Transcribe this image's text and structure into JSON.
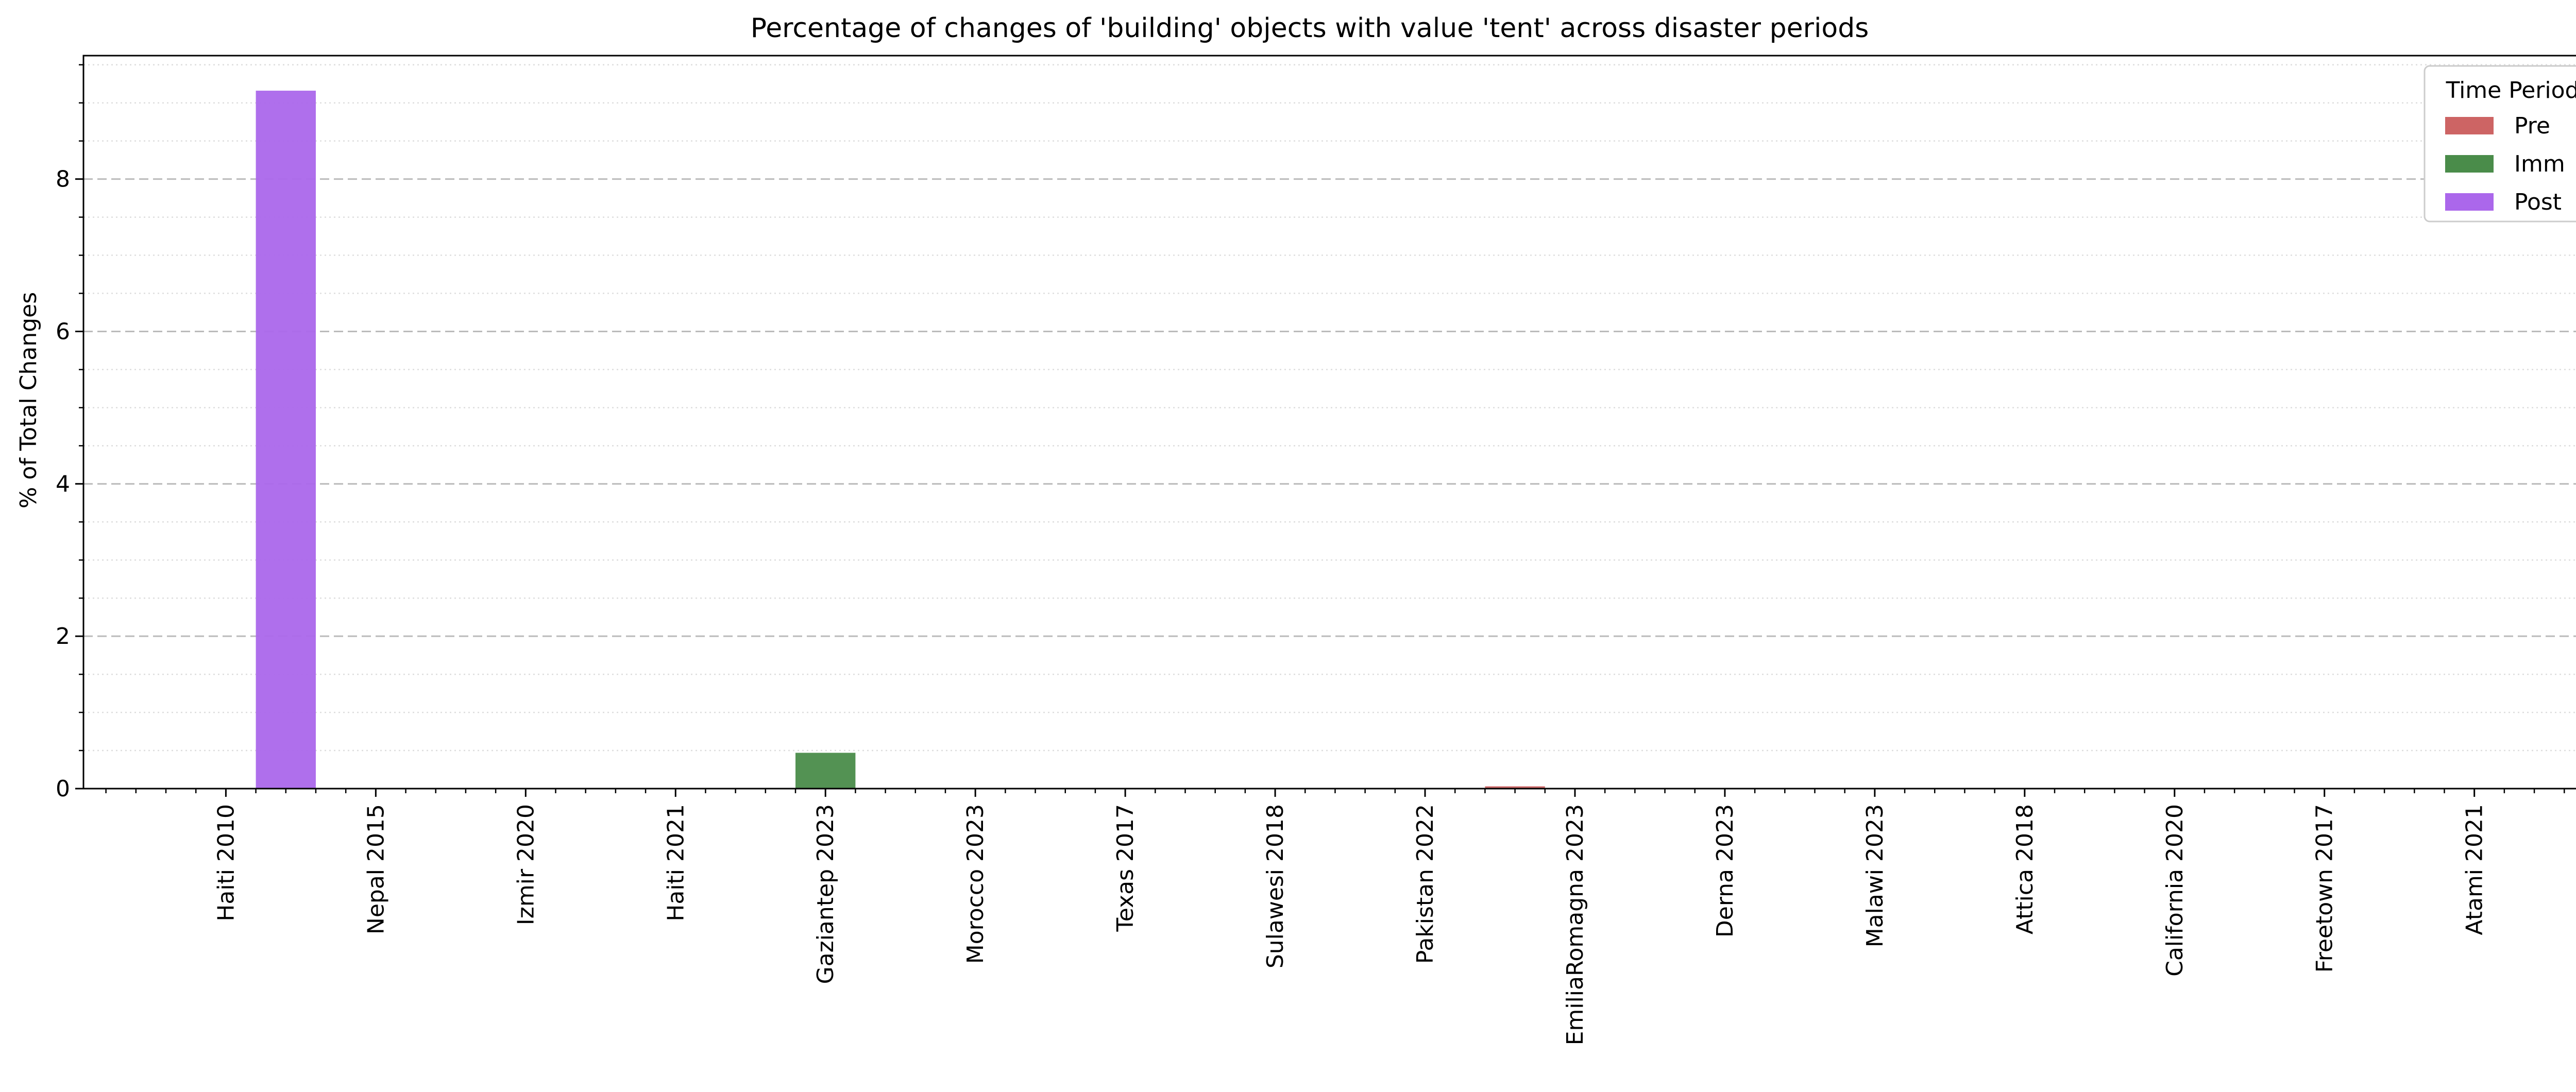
{
  "chart_data": {
    "type": "bar",
    "title": "Percentage of changes of 'building' objects with value 'tent' across disaster periods",
    "xlabel": "",
    "ylabel": "% of Total Changes",
    "categories": [
      "Haiti 2010",
      "Nepal 2015",
      "Izmir 2020",
      "Haiti 2021",
      "Gaziantep 2023",
      "Morocco 2023",
      "Texas 2017",
      "Sulawesi 2018",
      "Pakistan 2022",
      "EmiliaRomagna 2023",
      "Derna 2023",
      "Malawi 2023",
      "Attica 2018",
      "California 2020",
      "Freetown 2017",
      "Atami 2021"
    ],
    "series": [
      {
        "name": "Pre",
        "color": "#cd6464",
        "values": [
          0,
          0,
          0,
          0,
          0,
          0,
          0,
          0,
          0,
          0.03,
          0,
          0,
          0,
          0,
          0,
          0
        ]
      },
      {
        "name": "Imm",
        "color": "#4a8c4a",
        "values": [
          0,
          0,
          0,
          0,
          0.47,
          0,
          0,
          0,
          0,
          0,
          0,
          0,
          0,
          0,
          0,
          0
        ]
      },
      {
        "name": "Post",
        "color": "#ab67eb",
        "values": [
          9.16,
          0,
          0,
          0,
          0,
          0,
          0,
          0,
          0,
          0,
          0,
          0,
          0,
          0,
          0,
          0
        ]
      }
    ],
    "ylim": [
      0,
      9.62
    ],
    "yticks": [
      "0",
      "2",
      "4",
      "6",
      "8"
    ],
    "grid": "y-major-dashed, y-minor-dotted",
    "legend": {
      "title": "Time Period",
      "placement": "top-right"
    }
  }
}
